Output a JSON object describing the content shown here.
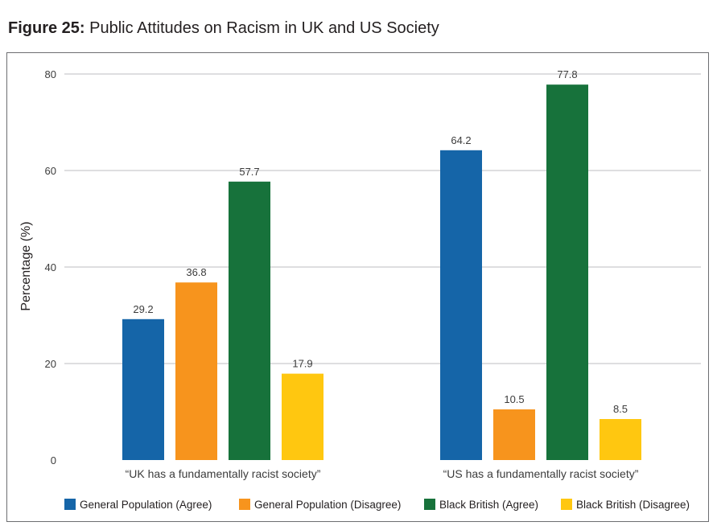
{
  "figure": {
    "number": "Figure 25:",
    "title": "Public Attitudes on Racism in UK and US Society"
  },
  "colors": {
    "gridline": "#a7a9ac",
    "axis": "#6d6e71"
  },
  "chart_data": {
    "type": "bar",
    "title": "Public Attitudes on Racism in UK and US Society",
    "xlabel": "",
    "ylabel": "Percentage (%)",
    "ylim": [
      0,
      80
    ],
    "yticks": [
      0,
      20,
      40,
      60,
      80
    ],
    "grid": true,
    "legend_position": "bottom",
    "categories": [
      "“UK has a fundamentally racist society”",
      "“US has a fundamentally racist society”"
    ],
    "series": [
      {
        "name": "General Population (Agree)",
        "color": "#1565a8",
        "values": [
          29.2,
          64.2
        ],
        "labels": [
          "29.2",
          "64.2"
        ]
      },
      {
        "name": "General Population (Disagree)",
        "color": "#f7941d",
        "values": [
          36.8,
          10.5
        ],
        "labels": [
          "36.8",
          "10.5"
        ]
      },
      {
        "name": "Black British (Agree)",
        "color": "#17723b",
        "values": [
          57.7,
          77.8
        ],
        "labels": [
          "57.7",
          "77.8"
        ]
      },
      {
        "name": "Black British (Disagree)",
        "color": "#ffc710",
        "values": [
          17.9,
          8.5
        ],
        "labels": [
          "17.9",
          "8.5"
        ]
      }
    ]
  }
}
